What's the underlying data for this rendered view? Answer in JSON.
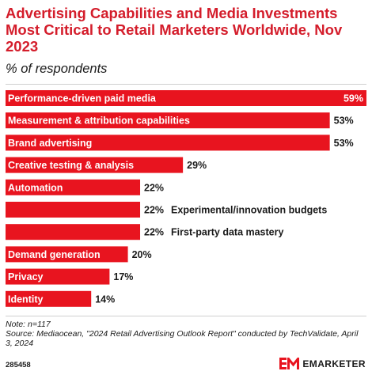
{
  "header": {
    "title": "Advertising Capabilities and Media Investments Most Critical to Retail Marketers Worldwide, Nov 2023",
    "subtitle": "% of respondents"
  },
  "footer": {
    "note": "Note: n=117",
    "source": "Source: Mediaocean, \"2024 Retail Advertising Outlook Report\" conducted by TechValidate, April 3, 2024",
    "chart_id": "285458",
    "brand": "EMARKETER",
    "brand_logo_icon": "em-logo-icon"
  },
  "colors": {
    "bar": "#e8141f",
    "title": "#d41d2b",
    "text": "#1a1a1a"
  },
  "chart_data": {
    "type": "bar",
    "orientation": "horizontal",
    "title": "Advertising Capabilities and Media Investments Most Critical to Retail Marketers Worldwide, Nov 2023",
    "subtitle": "% of respondents",
    "categories": [
      "Performance-driven paid media",
      "Measurement & attribution capabilities",
      "Brand advertising",
      "Creative testing & analysis",
      "Automation",
      "Experimental/innovation budgets",
      "First-party data mastery",
      "Demand generation",
      "Privacy",
      "Identity"
    ],
    "values": [
      59,
      53,
      53,
      29,
      22,
      22,
      22,
      20,
      17,
      14
    ],
    "value_labels": [
      "59%",
      "53%",
      "53%",
      "29%",
      "22%",
      "22%",
      "22%",
      "20%",
      "17%",
      "14%"
    ],
    "label_position": [
      "inside",
      "inside",
      "inside",
      "inside",
      "inside",
      "outside",
      "outside",
      "inside",
      "inside",
      "inside"
    ],
    "xlim": [
      0,
      59
    ],
    "grid": false,
    "legend": "none"
  }
}
